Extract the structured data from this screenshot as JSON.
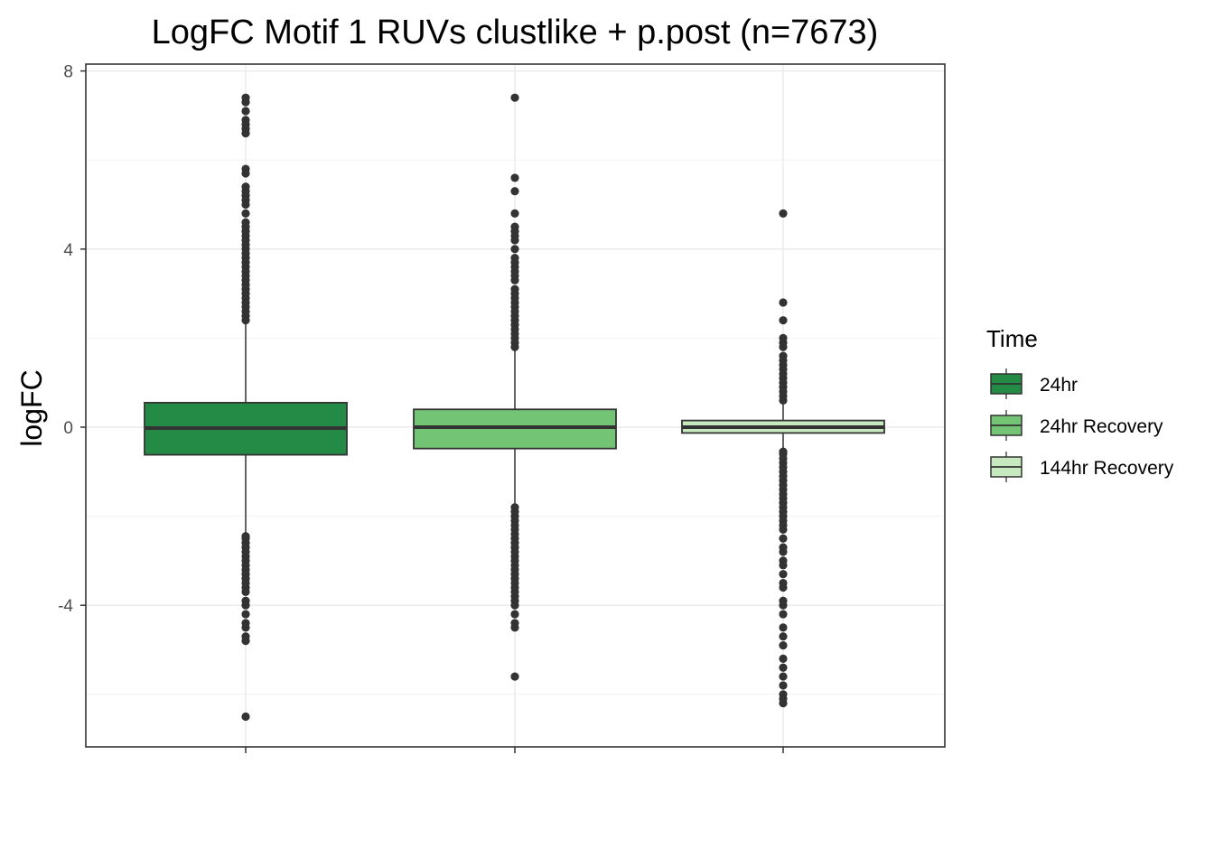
{
  "chart_data": {
    "type": "box",
    "title": "LogFC Motif 1 RUVs clustlike + p.post (n=7673)",
    "xlabel": "",
    "ylabel": "logFC",
    "ylim": [
      -7.2,
      8.1
    ],
    "y_ticks": [
      {
        "value": 8,
        "label": "8"
      },
      {
        "value": 4,
        "label": "4"
      },
      {
        "value": 0,
        "label": "0"
      },
      {
        "value": -4,
        "label": "-4"
      }
    ],
    "y_minor_grid": [
      6,
      2,
      -2,
      -6
    ],
    "grid": true,
    "legend": {
      "title": "Time",
      "position": "right"
    },
    "series": [
      {
        "name": "24hr",
        "color": "#238b45",
        "q1": -0.62,
        "median": -0.02,
        "q3": 0.55,
        "whisker_low": -2.42,
        "whisker_high": 2.35,
        "outliers": [
          7.4,
          7.3,
          7.1,
          6.9,
          6.8,
          6.7,
          6.6,
          5.8,
          5.7,
          5.4,
          5.3,
          5.2,
          5.1,
          5.0,
          4.8,
          4.6,
          4.5,
          4.4,
          4.3,
          4.2,
          4.1,
          4.0,
          3.9,
          3.8,
          3.7,
          3.6,
          3.5,
          3.4,
          3.3,
          3.2,
          3.1,
          3.0,
          2.9,
          2.8,
          2.7,
          2.6,
          2.5,
          2.4,
          -2.45,
          -2.5,
          -2.6,
          -2.7,
          -2.8,
          -2.9,
          -3.0,
          -3.1,
          -3.2,
          -3.3,
          -3.4,
          -3.5,
          -3.6,
          -3.7,
          -3.9,
          -4.0,
          -4.2,
          -4.4,
          -4.5,
          -4.7,
          -4.8,
          -6.5
        ]
      },
      {
        "name": "24hr Recovery",
        "color": "#74c476",
        "q1": -0.48,
        "median": 0.0,
        "q3": 0.4,
        "whisker_low": -1.78,
        "whisker_high": 1.72,
        "outliers": [
          7.4,
          5.6,
          5.3,
          4.8,
          4.5,
          4.4,
          4.3,
          4.2,
          4.0,
          3.8,
          3.7,
          3.6,
          3.5,
          3.4,
          3.3,
          3.1,
          3.0,
          2.9,
          2.8,
          2.7,
          2.6,
          2.5,
          2.4,
          2.3,
          2.2,
          2.1,
          2.0,
          1.9,
          1.8,
          -1.8,
          -1.9,
          -2.0,
          -2.1,
          -2.2,
          -2.3,
          -2.4,
          -2.5,
          -2.6,
          -2.7,
          -2.8,
          -2.9,
          -3.0,
          -3.1,
          -3.2,
          -3.3,
          -3.4,
          -3.5,
          -3.6,
          -3.7,
          -3.8,
          -3.9,
          -4.0,
          -4.2,
          -4.4,
          -4.5,
          -5.6
        ]
      },
      {
        "name": "144hr Recovery",
        "color": "#c7e9c0",
        "q1": -0.13,
        "median": 0.0,
        "q3": 0.15,
        "whisker_low": -0.52,
        "whisker_high": 0.55,
        "outliers": [
          4.8,
          2.8,
          2.4,
          2.0,
          1.9,
          1.8,
          1.6,
          1.5,
          1.4,
          1.3,
          1.2,
          1.1,
          1.0,
          0.9,
          0.8,
          0.7,
          0.6,
          -0.55,
          -0.6,
          -0.7,
          -0.8,
          -0.9,
          -1.0,
          -1.1,
          -1.2,
          -1.3,
          -1.4,
          -1.5,
          -1.6,
          -1.7,
          -1.8,
          -1.9,
          -2.0,
          -2.1,
          -2.2,
          -2.3,
          -2.5,
          -2.7,
          -2.8,
          -3.0,
          -3.1,
          -3.3,
          -3.5,
          -3.6,
          -3.9,
          -4.0,
          -4.2,
          -4.5,
          -4.7,
          -4.9,
          -5.2,
          -5.4,
          -5.6,
          -5.8,
          -6.0,
          -6.1,
          -6.2
        ]
      }
    ]
  }
}
